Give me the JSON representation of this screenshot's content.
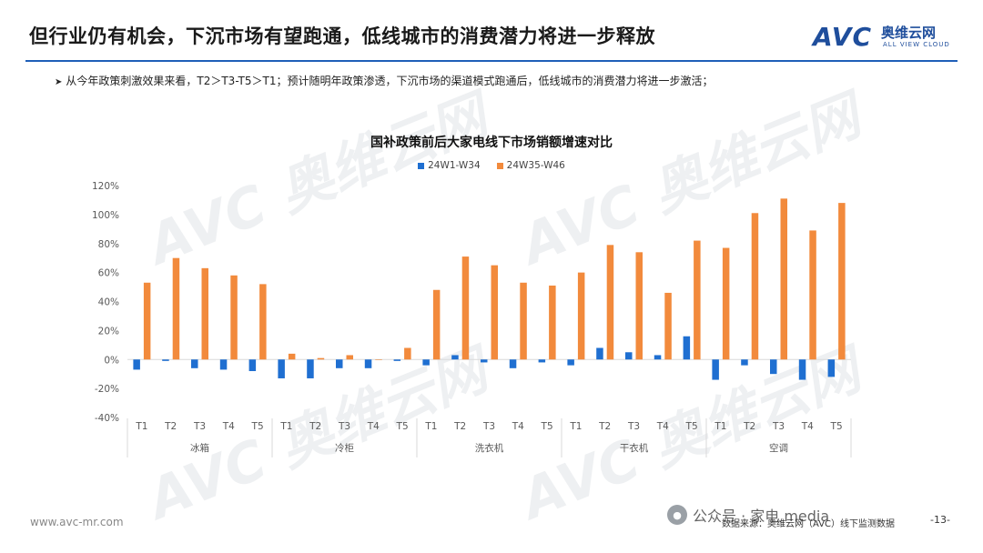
{
  "header": {
    "title": "但行业仍有机会，下沉市场有望跑通，低线城市的消费潜力将进一步释放",
    "logo_text": "AVC",
    "logo_cn": "奥维云网",
    "logo_en": "ALL VIEW CLOUD"
  },
  "bullet": "从今年政策刺激效果来看，T2＞T3-T5＞T1；预计随明年政策渗透，下沉市场的渠道模式跑通后，低线城市的消费潜力将进一步激活；",
  "footer": {
    "url": "www.avc-mr.com",
    "source": "数据来源：奥维云网（AVC）线下监测数据",
    "page": "-13-",
    "wechat": "公众号 · 家电 media"
  },
  "colors": {
    "series1": "#1f6fd1",
    "series2": "#f28a3c",
    "axis": "#d9d9d9",
    "text": "#595959"
  },
  "chart_data": {
    "type": "bar",
    "title": "国补政策前后大家电线下市场销额增速对比",
    "ylim": [
      -40,
      120
    ],
    "yticks": [
      -40,
      -20,
      0,
      20,
      40,
      60,
      80,
      100,
      120
    ],
    "ytick_labels": [
      "-40%",
      "-20%",
      "0%",
      "20%",
      "40%",
      "60%",
      "80%",
      "100%",
      "120%"
    ],
    "legend_position": "top-center",
    "grid": false,
    "groups": [
      {
        "name": "冰箱",
        "categories": [
          "T1",
          "T2",
          "T3",
          "T4",
          "T5"
        ]
      },
      {
        "name": "冷柜",
        "categories": [
          "T1",
          "T2",
          "T3",
          "T4",
          "T5"
        ]
      },
      {
        "name": "洗衣机",
        "categories": [
          "T1",
          "T2",
          "T3",
          "T4",
          "T5"
        ]
      },
      {
        "name": "干衣机",
        "categories": [
          "T1",
          "T2",
          "T3",
          "T4",
          "T5"
        ]
      },
      {
        "name": "空调",
        "categories": [
          "T1",
          "T2",
          "T3",
          "T4",
          "T5"
        ]
      }
    ],
    "series": [
      {
        "name": "24W1-W34",
        "values": [
          -7,
          -1,
          -6,
          -7,
          -8,
          -13,
          -13,
          -6,
          -6,
          -1,
          -4,
          3,
          -2,
          -6,
          -2,
          -4,
          8,
          5,
          3,
          16,
          -14,
          -4,
          -10,
          -14,
          -12
        ]
      },
      {
        "name": "24W35-W46",
        "values": [
          53,
          70,
          63,
          58,
          52,
          4,
          1,
          3,
          0,
          8,
          48,
          71,
          65,
          53,
          51,
          60,
          79,
          74,
          46,
          82,
          77,
          101,
          111,
          89,
          108
        ]
      }
    ]
  }
}
